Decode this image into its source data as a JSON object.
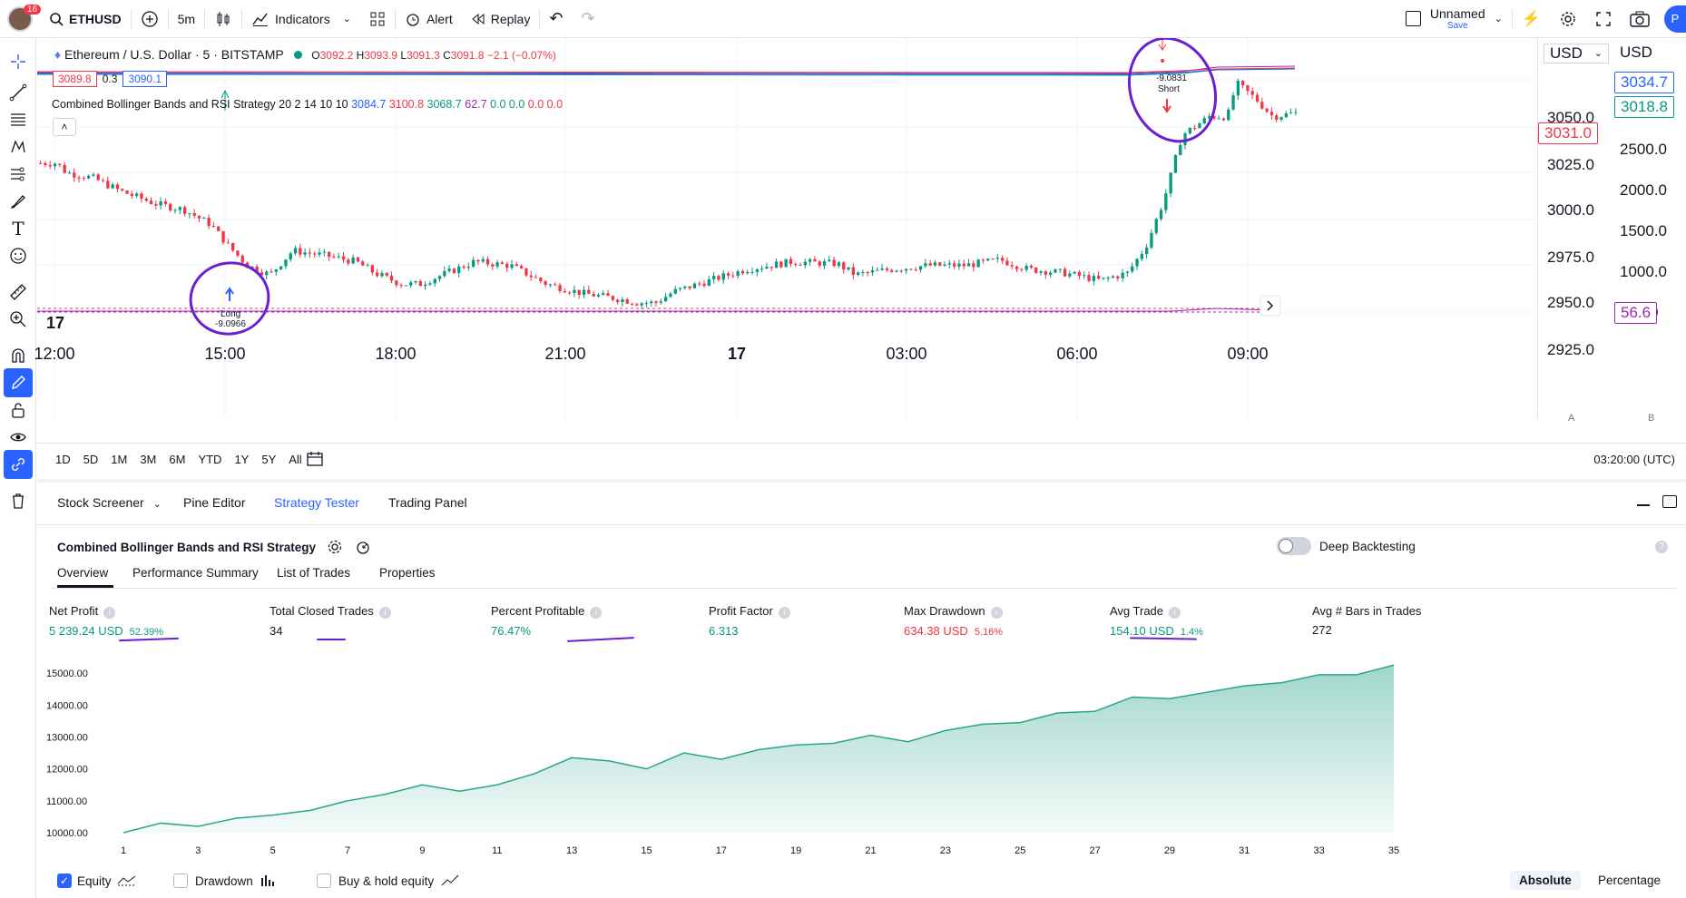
{
  "topbar": {
    "notif_count": "16",
    "symbol": "ETHUSD",
    "interval": "5m",
    "indicators": "Indicators",
    "alert": "Alert",
    "replay": "Replay",
    "layout_name": "Unnamed",
    "save_label": "Save",
    "avatar_letter": "P"
  },
  "chart": {
    "title": "Ethereum / U.S. Dollar · 5 · BITSTAMP",
    "ohlc": {
      "o": "O",
      "ov": "3092.2",
      "h": "H",
      "hv": "3093.9",
      "l": "L",
      "lv": "3091.3",
      "c": "C",
      "cv": "3091.8",
      "chg": "−2.1 (−0.07%)"
    },
    "bid": "3089.8",
    "spread": "0.3",
    "ask": "3090.1",
    "strategy_line": "Combined Bollinger Bands and RSI Strategy 20 2 14 10 10",
    "strategy_vals": [
      "3084.7",
      "3100.8",
      "3068.7",
      "62.7",
      "0.0",
      "0.0",
      "0.0",
      "0.0"
    ],
    "strategy_val_colors": [
      "#2962ff",
      "#f23645",
      "#089981",
      "#9c27b0",
      "#089981",
      "#089981",
      "#f23645",
      "#f23645"
    ],
    "currency_left": "USD",
    "currency_right": "USD",
    "y_ticks": [
      "3050.0",
      "3025.0",
      "3000.0",
      "2975.0",
      "2950.0",
      "2925.0"
    ],
    "y2_ticks": [
      "2500.0",
      "2000.0",
      "1500.0",
      "1000.0",
      "500.0"
    ],
    "tag_blue": "3034.7",
    "tag_green": "3018.8",
    "tag_red": "3031.0",
    "tag_purple": "56.6",
    "x_ticks": [
      "12:00",
      "15:00",
      "18:00",
      "21:00",
      "17",
      "03:00",
      "06:00",
      "09:00"
    ],
    "long_label": "Long",
    "long_value": "-9.0966",
    "short_label": "Short",
    "short_value": "-9.0831",
    "axis_a": "A",
    "axis_b": "B"
  },
  "rangebar": {
    "ranges": [
      "1D",
      "5D",
      "1M",
      "3M",
      "6M",
      "YTD",
      "1Y",
      "5Y",
      "All"
    ],
    "time": "03:20:00 (UTC)"
  },
  "panel": {
    "tabs": [
      "Stock Screener",
      "Pine Editor",
      "Strategy Tester",
      "Trading Panel"
    ],
    "strategy_name": "Combined Bollinger Bands and RSI Strategy",
    "deep_backtesting": "Deep Backtesting",
    "subtabs": [
      "Overview",
      "Performance Summary",
      "List of Trades",
      "Properties"
    ],
    "stats": [
      {
        "label": "Net Profit",
        "value": "5 239.24 USD",
        "pct": "52.39%",
        "color": "#089981"
      },
      {
        "label": "Total Closed Trades",
        "value": "34",
        "pct": "",
        "color": "#131722"
      },
      {
        "label": "Percent Profitable",
        "value": "76.47%",
        "pct": "",
        "color": "#089981"
      },
      {
        "label": "Profit Factor",
        "value": "6.313",
        "pct": "",
        "color": "#089981"
      },
      {
        "label": "Max Drawdown",
        "value": "634.38 USD",
        "pct": "5.16%",
        "color": "#f23645"
      },
      {
        "label": "Avg Trade",
        "value": "154.10 USD",
        "pct": "1.4%",
        "color": "#089981"
      },
      {
        "label": "Avg # Bars in Trades",
        "value": "272",
        "pct": "",
        "color": "#131722"
      }
    ],
    "equity_label": "Equity",
    "drawdown_label": "Drawdown",
    "buyhold_label": "Buy & hold equity",
    "absolute": "Absolute",
    "percentage": "Percentage"
  },
  "chart_data": {
    "type": "area",
    "title": "",
    "xlabel": "",
    "ylabel": "",
    "x": [
      1,
      2,
      3,
      4,
      5,
      6,
      7,
      8,
      9,
      10,
      11,
      12,
      13,
      14,
      15,
      16,
      17,
      18,
      19,
      20,
      21,
      22,
      23,
      24,
      25,
      26,
      27,
      28,
      29,
      30,
      31,
      32,
      33,
      34,
      35
    ],
    "x_ticks": [
      1,
      3,
      5,
      7,
      9,
      11,
      13,
      15,
      17,
      19,
      21,
      23,
      25,
      27,
      29,
      31,
      33,
      35
    ],
    "y_ticks": [
      "10000.00",
      "11000.00",
      "12000.00",
      "13000.00",
      "14000.00",
      "15000.00"
    ],
    "ylim": [
      10000,
      15400
    ],
    "series": [
      {
        "values": [
          10000,
          10300,
          10200,
          10450,
          10550,
          10700,
          11000,
          11200,
          11500,
          11300,
          11500,
          11850,
          12350,
          12250,
          12000,
          12500,
          12300,
          12600,
          12750,
          12800,
          13050,
          12850,
          13200,
          13400,
          13450,
          13750,
          13800,
          14250,
          14200,
          14400,
          14600,
          14700,
          14950,
          14950,
          15250
        ]
      }
    ],
    "color": "#2aa58b",
    "grid": true,
    "legend": "none"
  }
}
